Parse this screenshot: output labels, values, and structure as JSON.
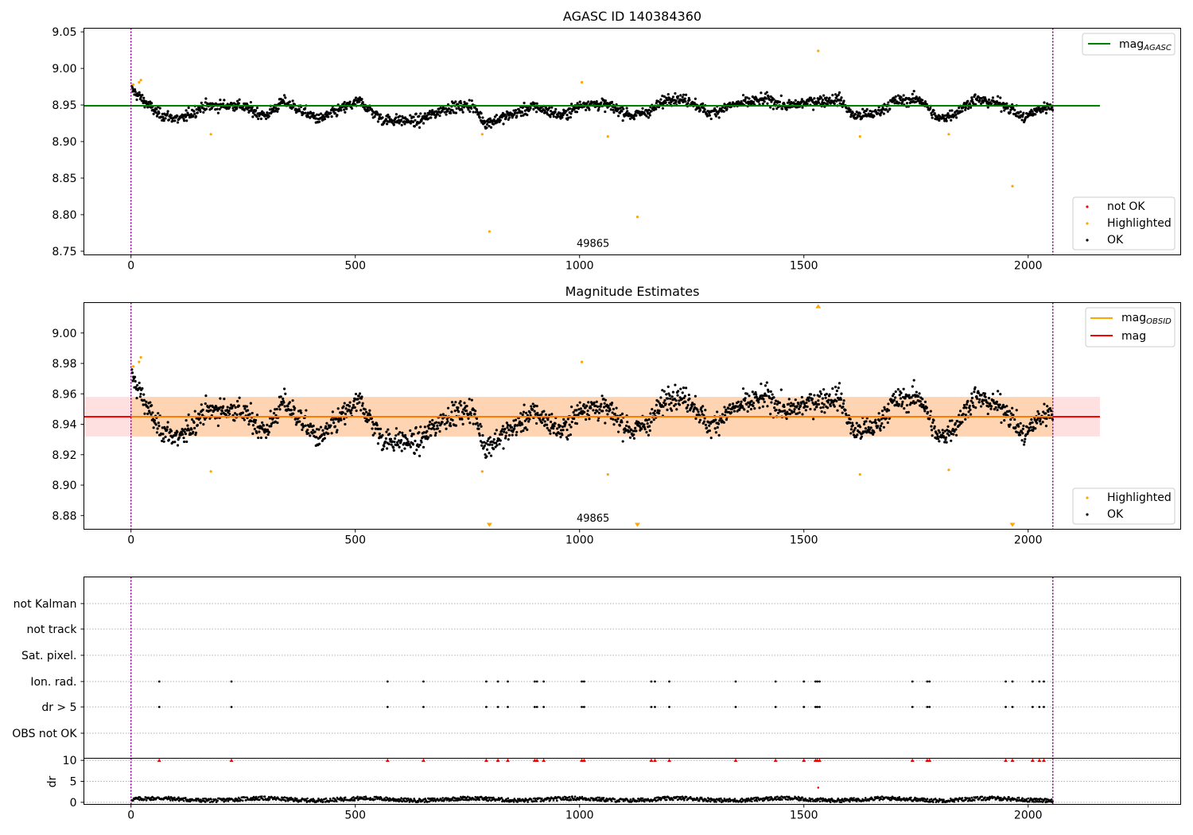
{
  "chart_data": [
    {
      "type": "scatter",
      "title": "AGASC ID 140384360",
      "xlim": [
        -105,
        2340
      ],
      "ylim": [
        8.745,
        9.055
      ],
      "xticks": [
        "0",
        "500",
        "1000",
        "1500",
        "2000"
      ],
      "yticks": [
        "8.75",
        "8.80",
        "8.85",
        "8.90",
        "8.95",
        "9.00",
        "9.05"
      ],
      "vlines": [
        0,
        2055
      ],
      "annotation": {
        "text": "49865",
        "x": 1030,
        "y": 8.76
      },
      "hline": {
        "y": 8.949,
        "x0": -105,
        "x1": 2160,
        "color": "#008000"
      },
      "legend_top": [
        {
          "label": "mag",
          "sub": "AGASC",
          "color": "#008000"
        }
      ],
      "legend_bottom": [
        {
          "label": "not OK",
          "color": "#ff0000"
        },
        {
          "label": "Highlighted",
          "color": "#ffa500"
        },
        {
          "label": "OK",
          "color": "#000000"
        }
      ],
      "highlighted": [
        [
          5,
          8.978
        ],
        [
          18,
          8.981
        ],
        [
          22,
          8.984
        ],
        [
          178,
          8.91
        ],
        [
          783,
          8.91
        ],
        [
          799,
          8.777
        ],
        [
          1005,
          8.981
        ],
        [
          1063,
          8.907
        ],
        [
          1129,
          8.797
        ],
        [
          1532,
          9.024
        ],
        [
          1625,
          8.907
        ],
        [
          1823,
          8.91
        ],
        [
          1965,
          8.839
        ]
      ],
      "not_ok": []
    },
    {
      "type": "scatter",
      "title": "Magnitude Estimates",
      "xlim": [
        -105,
        2340
      ],
      "ylim": [
        8.871,
        9.02
      ],
      "xticks": [
        "0",
        "500",
        "1000",
        "1500",
        "2000"
      ],
      "yticks": [
        "8.88",
        "8.90",
        "8.92",
        "8.94",
        "8.96",
        "8.98",
        "9.00"
      ],
      "vlines": [
        0,
        2055
      ],
      "annotation": {
        "text": "49865",
        "x": 1030,
        "y": 8.878
      },
      "mag_line": {
        "y": 8.945,
        "x0": -105,
        "x1": 2160,
        "color": "#ff0000"
      },
      "band_outer": {
        "y0": 8.932,
        "y1": 8.958,
        "x0": -105,
        "x1": 2160
      },
      "band_inner": {
        "y0": 8.932,
        "y1": 8.958,
        "x0": 0,
        "x1": 2055
      },
      "obsid_line": {
        "y": 8.945,
        "x0": 0,
        "x1": 2055,
        "color": "#ffa500"
      },
      "legend_top": [
        {
          "label": "mag",
          "sub": "OBSID",
          "color": "#ffa500"
        },
        {
          "label": "mag",
          "sub": "",
          "color": "#ff0000"
        }
      ],
      "legend_bottom": [
        {
          "label": "Highlighted",
          "color": "#ffa500"
        },
        {
          "label": "OK",
          "color": "#000000"
        }
      ],
      "highlighted": [
        [
          5,
          8.978
        ],
        [
          18,
          8.981
        ],
        [
          22,
          8.984
        ],
        [
          178,
          8.909
        ],
        [
          783,
          8.909
        ],
        [
          1005,
          8.981
        ],
        [
          1063,
          8.907
        ],
        [
          1625,
          8.907
        ],
        [
          1823,
          8.91
        ]
      ],
      "offscale": [
        [
          799,
          "down"
        ],
        [
          1129,
          "down"
        ],
        [
          1965,
          "down"
        ],
        [
          1532,
          "up"
        ]
      ]
    },
    {
      "type": "scatter",
      "categories": [
        "not Kalman",
        "not track",
        "Sat. pixel.",
        "Ion. rad.",
        "dr > 5",
        "OBS not OK"
      ],
      "xlim": [
        -105,
        2340
      ],
      "vlines": [
        0,
        2055
      ],
      "flag_x": [
        63,
        224,
        572,
        652,
        792,
        818,
        840,
        900,
        905,
        920,
        1005,
        1010,
        1160,
        1168,
        1200,
        1348,
        1437,
        1500,
        1526,
        1530,
        1535,
        1742,
        1775,
        1780,
        1950,
        1965,
        2010,
        2025,
        2035
      ]
    },
    {
      "type": "line",
      "ylabel": "dr",
      "xlim": [
        -105,
        2340
      ],
      "ylim": [
        -0.5,
        10.5
      ],
      "xticks": [
        "0",
        "500",
        "1000",
        "1500",
        "2000"
      ],
      "yticks": [
        "0",
        "5",
        "10"
      ],
      "vlines": [
        0,
        2055
      ],
      "outlier": [
        1532,
        3.5
      ]
    }
  ]
}
